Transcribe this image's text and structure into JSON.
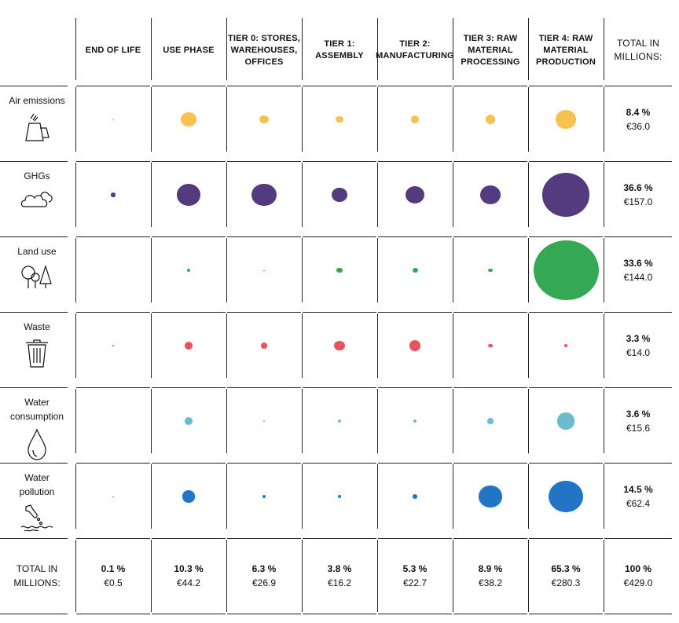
{
  "chart_data": {
    "type": "bubble-matrix",
    "columns": [
      "END OF LIFE",
      "USE PHASE",
      "TIER 0: STORES, WAREHOUSES, OFFICES",
      "TIER 1: ASSEMBLY",
      "TIER 2: MANUFACTURING",
      "TIER 3: RAW MATERIAL PROCESSING",
      "TIER 4: RAW MATERIAL PRODUCTION"
    ],
    "total_column_label": "TOTAL IN MILLIONS:",
    "total_row_label": "TOTAL IN MILLIONS:",
    "rows": [
      {
        "label": "Air emissions",
        "icon": "factory-smoke-icon",
        "color": "#f9c14f",
        "values": [
          0.02,
          3.4,
          1.2,
          0.8,
          1.0,
          1.5,
          5.8
        ],
        "total_pct": "8.4 %",
        "total_eur": "€36.0"
      },
      {
        "label": "GHGs",
        "icon": "cloud-icon",
        "color": "#543a7e",
        "values": [
          0.3,
          8.5,
          9.0,
          3.6,
          5.4,
          6.5,
          34.0
        ],
        "total_pct": "36.6 %",
        "total_eur": "€157.0"
      },
      {
        "label": "Land use",
        "icon": "trees-icon",
        "color": "#35a853",
        "values": [
          0.0,
          0.15,
          0.01,
          0.5,
          0.45,
          0.25,
          63.0
        ],
        "total_pct": "33.6 %",
        "total_eur": "€144.0"
      },
      {
        "label": "Waste",
        "icon": "trash-bin-icon",
        "color": "#e9535b",
        "values": [
          0.05,
          1.1,
          0.55,
          1.7,
          2.0,
          0.25,
          0.15
        ],
        "total_pct": "3.3 %",
        "total_eur": "€14.0"
      },
      {
        "label": "Water consumption",
        "icon": "water-drop-icon",
        "color": "#6bbcd1",
        "values": [
          0.0,
          1.1,
          0.04,
          0.2,
          0.15,
          0.55,
          4.8
        ],
        "total_pct": "3.6 %",
        "total_eur": "€15.6"
      },
      {
        "label": "Water pollution",
        "icon": "water-pollution-icon",
        "color": "#2175c4",
        "values": [
          0.01,
          2.6,
          0.2,
          0.15,
          0.35,
          8.0,
          17.5
        ],
        "total_pct": "14.5 %",
        "total_eur": "€62.4"
      }
    ],
    "column_totals": [
      {
        "pct": "0.1 %",
        "eur": "€0.5"
      },
      {
        "pct": "10.3 %",
        "eur": "€44.2"
      },
      {
        "pct": "6.3 %",
        "eur": "€26.9"
      },
      {
        "pct": "3.8 %",
        "eur": "€16.2"
      },
      {
        "pct": "5.3 %",
        "eur": "€22.7"
      },
      {
        "pct": "8.9 %",
        "eur": "€38.2"
      },
      {
        "pct": "65.3 %",
        "eur": "€280.3"
      }
    ],
    "grand_total": {
      "pct": "100 %",
      "eur": "€429.0"
    }
  }
}
